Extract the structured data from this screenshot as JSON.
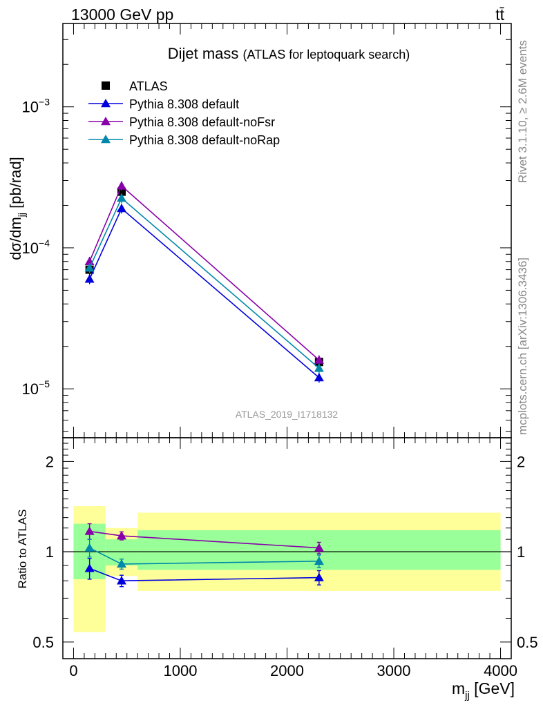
{
  "header": {
    "energy_label": "13000 GeV pp",
    "process_label": "tt̄"
  },
  "side_labels": {
    "rivet": "Rivet 3.1.10, ≥ 2.6M events",
    "mcplots": "mcplots.cern.ch [arXiv:1306.3436]"
  },
  "colors": {
    "data": "#000000",
    "default": "#0000dd",
    "noFsr": "#8800aa",
    "noRap": "#0088aa",
    "band_outer": "#ffff99",
    "band_inner": "#99ff99"
  },
  "chart_data": [
    {
      "type": "line",
      "title": "Dijet mass",
      "subtitle": "(ATLAS for leptoquark search)",
      "ylabel": "dσ/dm",
      "ylabel_sub": "jj",
      "ylabel_unit": " [pb/rad]",
      "watermark": "ATLAS_2019_I1718132",
      "yscale": "log",
      "ylim": [
        4.5e-06,
        0.0039
      ],
      "xlim": [
        -100,
        4100
      ],
      "y_ticks": [
        {
          "label": "10",
          "exp": "−3",
          "value": 0.001
        },
        {
          "label": "10",
          "exp": "−4",
          "value": 0.0001
        },
        {
          "label": "10",
          "exp": "−5",
          "value": 1e-05
        }
      ],
      "legend_position": "top-left",
      "series": [
        {
          "name": "ATLAS",
          "marker": "square",
          "color": "#000000",
          "x": [
            150,
            450,
            2300
          ],
          "y": [
            7e-05,
            0.00025,
            1.55e-05
          ]
        },
        {
          "name": "Pythia 8.308 default",
          "marker": "triangle",
          "color": "#0000dd",
          "x": [
            150,
            450,
            2300
          ],
          "y": [
            6e-05,
            0.00019,
            1.2e-05
          ]
        },
        {
          "name": "Pythia 8.308 default-noFsr",
          "marker": "triangle",
          "color": "#8800aa",
          "x": [
            150,
            450,
            2300
          ],
          "y": [
            8e-05,
            0.000275,
            1.6e-05
          ]
        },
        {
          "name": "Pythia 8.308 default-noRap",
          "marker": "triangle",
          "color": "#0088aa",
          "x": [
            150,
            450,
            2300
          ],
          "y": [
            7.2e-05,
            0.000225,
            1.4e-05
          ]
        }
      ]
    },
    {
      "type": "line",
      "ylabel": "Ratio to ATLAS",
      "xlabel": "m",
      "xlabel_sub": "jj",
      "xlabel_unit": " [GeV]",
      "yscale": "log",
      "ylim": [
        0.44,
        2.4
      ],
      "xlim": [
        -100,
        4100
      ],
      "y_ticks": [
        {
          "label": "2",
          "value": 2
        },
        {
          "label": "1",
          "value": 1
        },
        {
          "label": "0.5",
          "value": 0.5
        }
      ],
      "x_ticks": [
        {
          "label": "0",
          "value": 0
        },
        {
          "label": "1000",
          "value": 1000
        },
        {
          "label": "2000",
          "value": 2000
        },
        {
          "label": "3000",
          "value": 3000
        },
        {
          "label": "4000",
          "value": 4000
        }
      ],
      "bands": [
        {
          "x_range": [
            0,
            300
          ],
          "outer": [
            0.54,
            1.42
          ],
          "inner": [
            0.81,
            1.24
          ]
        },
        {
          "x_range": [
            300,
            600
          ],
          "outer": [
            0.83,
            1.2
          ],
          "inner": [
            0.9,
            1.1
          ]
        },
        {
          "x_range": [
            600,
            4000
          ],
          "outer": [
            0.74,
            1.35
          ],
          "inner": [
            0.87,
            1.18
          ]
        }
      ],
      "series": [
        {
          "name": "Pythia 8.308 default",
          "color": "#0000dd",
          "x": [
            150,
            450,
            2300
          ],
          "y": [
            0.88,
            0.8,
            0.82
          ],
          "err": [
            0.07,
            0.035,
            0.045
          ]
        },
        {
          "name": "Pythia 8.308 default-noFsr",
          "color": "#8800aa",
          "x": [
            150,
            450,
            2300
          ],
          "y": [
            1.17,
            1.13,
            1.03
          ],
          "err": [
            0.07,
            0.035,
            0.045
          ]
        },
        {
          "name": "Pythia 8.308 default-noRap",
          "color": "#0088aa",
          "x": [
            150,
            450,
            2300
          ],
          "y": [
            1.03,
            0.91,
            0.93
          ],
          "err": [
            0.07,
            0.035,
            0.045
          ]
        }
      ]
    }
  ]
}
